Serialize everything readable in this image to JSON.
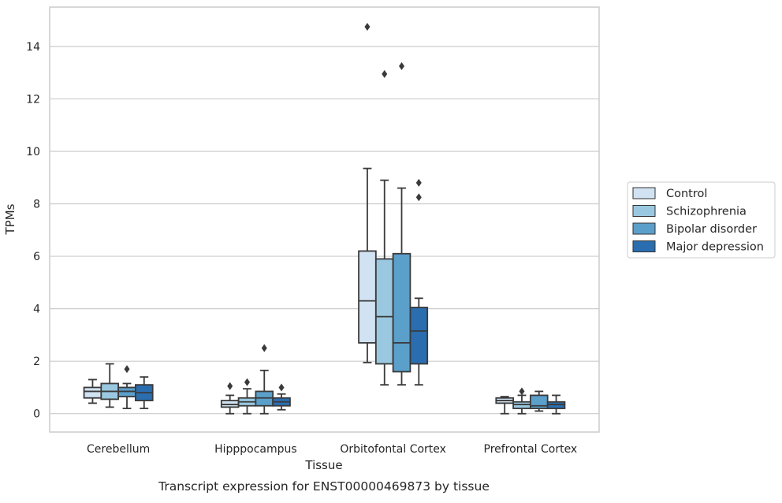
{
  "chart_data": {
    "type": "box",
    "title": "Transcript expression for ENST00000469873 by tissue",
    "xlabel": "Tissue",
    "ylabel": "TPMs",
    "ylim": [
      -0.7,
      15.5
    ],
    "yticks": [
      0,
      2,
      4,
      6,
      8,
      10,
      12,
      14
    ],
    "grid": "horizontal",
    "legend_position": "right",
    "categories": [
      "Cerebellum",
      "Hipppocampus",
      "Orbitofontal Cortex",
      "Prefrontal Cortex"
    ],
    "series": [
      {
        "name": "Control",
        "color": "#d1e2f2",
        "boxes": [
          {
            "whislo": 0.4,
            "q1": 0.6,
            "med": 0.85,
            "q3": 1.0,
            "whishi": 1.3,
            "fliers": []
          },
          {
            "whislo": 0.0,
            "q1": 0.25,
            "med": 0.35,
            "q3": 0.5,
            "whishi": 0.7,
            "fliers": [
              1.05
            ]
          },
          {
            "whislo": 1.95,
            "q1": 2.7,
            "med": 4.3,
            "q3": 6.2,
            "whishi": 9.35,
            "fliers": [
              14.75
            ]
          },
          {
            "whislo": 0.0,
            "q1": 0.4,
            "med": 0.5,
            "q3": 0.6,
            "whishi": 0.65,
            "fliers": []
          }
        ]
      },
      {
        "name": "Schizophrenia",
        "color": "#9ac8e0",
        "boxes": [
          {
            "whislo": 0.25,
            "q1": 0.55,
            "med": 0.85,
            "q3": 1.15,
            "whishi": 1.9,
            "fliers": []
          },
          {
            "whislo": 0.0,
            "q1": 0.3,
            "med": 0.45,
            "q3": 0.6,
            "whishi": 0.95,
            "fliers": [
              1.2
            ]
          },
          {
            "whislo": 1.1,
            "q1": 1.9,
            "med": 3.7,
            "q3": 5.9,
            "whishi": 8.9,
            "fliers": [
              12.95
            ]
          },
          {
            "whislo": 0.0,
            "q1": 0.2,
            "med": 0.35,
            "q3": 0.45,
            "whishi": 0.7,
            "fliers": [
              0.85
            ]
          }
        ]
      },
      {
        "name": "Bipolar disorder",
        "color": "#5b9fcb",
        "boxes": [
          {
            "whislo": 0.2,
            "q1": 0.65,
            "med": 0.85,
            "q3": 1.0,
            "whishi": 1.15,
            "fliers": [
              1.7
            ]
          },
          {
            "whislo": 0.0,
            "q1": 0.3,
            "med": 0.6,
            "q3": 0.85,
            "whishi": 1.65,
            "fliers": [
              2.5
            ]
          },
          {
            "whislo": 1.1,
            "q1": 1.6,
            "med": 2.7,
            "q3": 6.1,
            "whishi": 8.6,
            "fliers": [
              13.25
            ]
          },
          {
            "whislo": 0.1,
            "q1": 0.2,
            "med": 0.3,
            "q3": 0.7,
            "whishi": 0.85,
            "fliers": []
          }
        ]
      },
      {
        "name": "Major depression",
        "color": "#2a6eb0",
        "boxes": [
          {
            "whislo": 0.2,
            "q1": 0.5,
            "med": 0.8,
            "q3": 1.1,
            "whishi": 1.4,
            "fliers": []
          },
          {
            "whislo": 0.15,
            "q1": 0.3,
            "med": 0.45,
            "q3": 0.6,
            "whishi": 0.75,
            "fliers": [
              1.0
            ]
          },
          {
            "whislo": 1.1,
            "q1": 1.9,
            "med": 3.15,
            "q3": 4.05,
            "whishi": 4.4,
            "fliers": [
              8.25,
              8.8
            ]
          },
          {
            "whislo": 0.0,
            "q1": 0.2,
            "med": 0.35,
            "q3": 0.45,
            "whishi": 0.7,
            "fliers": []
          }
        ]
      }
    ]
  }
}
